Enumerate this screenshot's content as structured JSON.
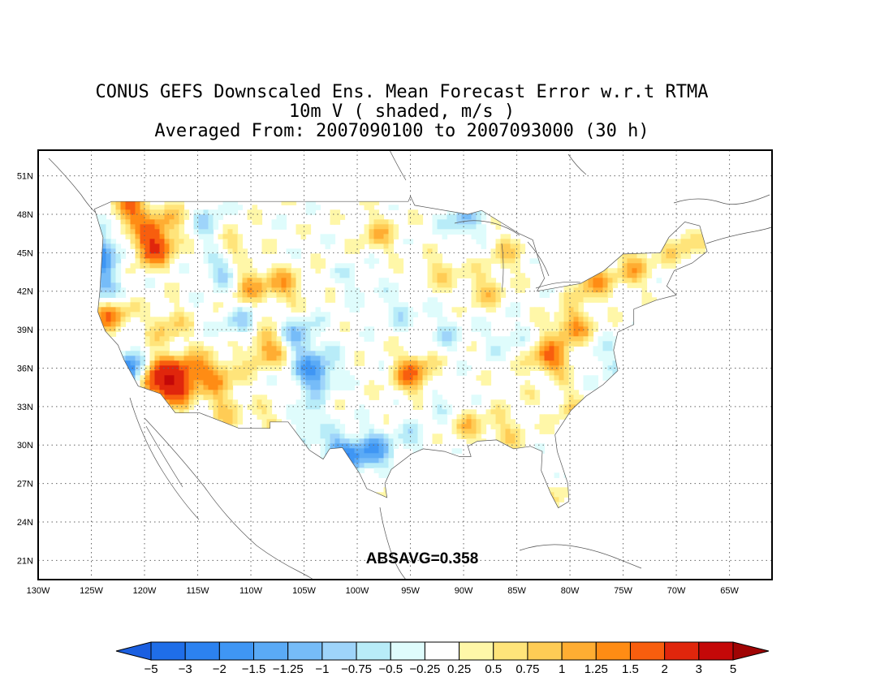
{
  "title": {
    "line1": "CONUS GEFS Downscaled Ens. Mean Forecast Error w.r.t RTMA",
    "line2": "10m V ( shaded, m/s )",
    "line3": "Averaged From: 2007090100 to 2007093000 (30 h)"
  },
  "annotation": "ABSAVG=0.358",
  "map": {
    "lon_range": [
      -130,
      -61
    ],
    "lat_range": [
      19.5,
      53
    ],
    "lon_ticks": [
      "130W",
      "125W",
      "120W",
      "115W",
      "110W",
      "105W",
      "100W",
      "95W",
      "90W",
      "85W",
      "80W",
      "75W",
      "70W",
      "65W"
    ],
    "lat_ticks": [
      "51N",
      "48N",
      "45N",
      "42N",
      "39N",
      "36N",
      "33N",
      "30N",
      "27N",
      "24N",
      "21N"
    ],
    "grid": "dotted"
  },
  "colorbar": {
    "labels": [
      "-5",
      "-3",
      "-2",
      "-1.5",
      "-1.25",
      "-1",
      "-0.75",
      "-0.5",
      "-0.25",
      "0.25",
      "0.5",
      "0.75",
      "1",
      "1.25",
      "1.5",
      "2",
      "3",
      "5"
    ],
    "colors": [
      "#1b5fe0",
      "#1f6ee8",
      "#2c82f0",
      "#3f96f4",
      "#5aaaf6",
      "#76bcf8",
      "#9ed4fa",
      "#b8ecf8",
      "#dffcfc",
      "#ffffff",
      "#fff7a8",
      "#ffe47a",
      "#ffcc55",
      "#ffad32",
      "#ff8c14",
      "#f85e0e",
      "#e0260c",
      "#c40808",
      "#a00404"
    ],
    "extend": "both"
  },
  "shaded_field": {
    "description_units": "m/s",
    "blobs": [
      {
        "lon": -121.8,
        "lat": 48.3,
        "v": 2.0
      },
      {
        "lon": -119.2,
        "lat": 45.5,
        "v": 2.0
      },
      {
        "lon": -118.8,
        "lat": 35.3,
        "v": 2.0
      },
      {
        "lon": -117.3,
        "lat": 34.4,
        "v": 1.6
      },
      {
        "lon": -123.4,
        "lat": 40.4,
        "v": 1.6
      },
      {
        "lon": -117.8,
        "lat": 39.3,
        "v": 0.8
      },
      {
        "lon": -115.8,
        "lat": 35.8,
        "v": 1.2
      },
      {
        "lon": -113.0,
        "lat": 35.5,
        "v": 1.0
      },
      {
        "lon": -108.5,
        "lat": 37.6,
        "v": 1.3
      },
      {
        "lon": -110.5,
        "lat": 42.6,
        "v": 1.1
      },
      {
        "lon": -107.0,
        "lat": 42.4,
        "v": 1.0
      },
      {
        "lon": -112.0,
        "lat": 46.0,
        "v": 0.9
      },
      {
        "lon": -118.0,
        "lat": 47.5,
        "v": 0.8
      },
      {
        "lon": -112.5,
        "lat": 32.8,
        "v": 0.7
      },
      {
        "lon": -107.5,
        "lat": 31.8,
        "v": 0.6
      },
      {
        "lon": -98.0,
        "lat": 46.5,
        "v": 0.8
      },
      {
        "lon": -94.8,
        "lat": 35.6,
        "v": 1.5
      },
      {
        "lon": -92.0,
        "lat": 43.5,
        "v": 0.6
      },
      {
        "lon": -88.0,
        "lat": 42.0,
        "v": 0.7
      },
      {
        "lon": -86.0,
        "lat": 45.0,
        "v": 0.6
      },
      {
        "lon": -82.0,
        "lat": 36.6,
        "v": 1.6
      },
      {
        "lon": -79.8,
        "lat": 39.2,
        "v": 1.2
      },
      {
        "lon": -78.0,
        "lat": 42.8,
        "v": 1.1
      },
      {
        "lon": -74.0,
        "lat": 43.8,
        "v": 0.9
      },
      {
        "lon": -69.5,
        "lat": 45.5,
        "v": 0.7
      },
      {
        "lon": -89.5,
        "lat": 31.5,
        "v": 0.7
      },
      {
        "lon": -86.0,
        "lat": 31.0,
        "v": 0.6
      },
      {
        "lon": -82.5,
        "lat": 26.0,
        "v": 0.9
      },
      {
        "lon": -95.5,
        "lat": 26.2,
        "v": 0.6
      },
      {
        "lon": -80.0,
        "lat": 33.0,
        "v": 0.6
      },
      {
        "lon": -84.0,
        "lat": 34.5,
        "v": 0.5
      },
      {
        "lon": -124.2,
        "lat": 45.0,
        "v": -1.6
      },
      {
        "lon": -124.0,
        "lat": 42.0,
        "v": -1.4
      },
      {
        "lon": -121.8,
        "lat": 35.7,
        "v": -2.2
      },
      {
        "lon": -123.5,
        "lat": 48.0,
        "v": -1.0
      },
      {
        "lon": -104.0,
        "lat": 35.7,
        "v": -1.6
      },
      {
        "lon": -101.5,
        "lat": 29.2,
        "v": -1.6
      },
      {
        "lon": -98.5,
        "lat": 29.5,
        "v": -1.3
      },
      {
        "lon": -105.5,
        "lat": 38.5,
        "v": -1.0
      },
      {
        "lon": -105.0,
        "lat": 32.0,
        "v": -0.8
      },
      {
        "lon": -112.5,
        "lat": 43.5,
        "v": -1.0
      },
      {
        "lon": -111.0,
        "lat": 39.5,
        "v": -0.7
      },
      {
        "lon": -113.5,
        "lat": 47.0,
        "v": -0.9
      },
      {
        "lon": -90.0,
        "lat": 47.5,
        "v": -0.9
      },
      {
        "lon": -96.0,
        "lat": 40.5,
        "v": -0.5
      },
      {
        "lon": -91.5,
        "lat": 38.8,
        "v": -0.5
      },
      {
        "lon": -83.0,
        "lat": 35.0,
        "v": -0.6
      },
      {
        "lon": -77.0,
        "lat": 36.5,
        "v": -0.6
      },
      {
        "lon": -86.0,
        "lat": 38.5,
        "v": -0.5
      },
      {
        "lon": -92.0,
        "lat": 33.5,
        "v": -0.4
      },
      {
        "lon": -80.0,
        "lat": 28.0,
        "v": -0.4
      },
      {
        "lon": -100.0,
        "lat": 43.0,
        "v": -0.4
      },
      {
        "lon": -95.0,
        "lat": 30.5,
        "v": -0.4
      }
    ]
  }
}
